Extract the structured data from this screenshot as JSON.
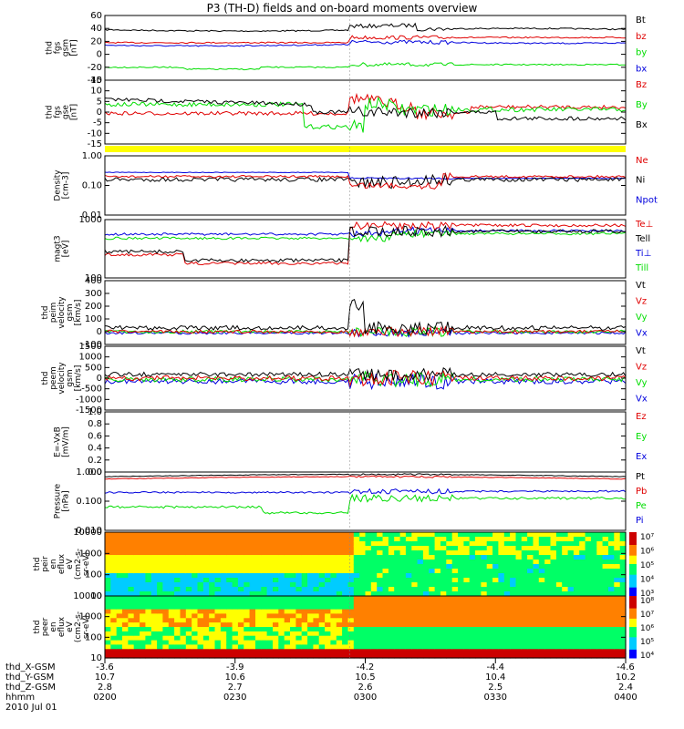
{
  "title": "P3 (TH-D) fields and on-board moments overview",
  "colors": {
    "black": "#000000",
    "red": "#e00000",
    "green": "#00dd00",
    "blue": "#0000dd",
    "yellow": "#ffff00"
  },
  "chart_data": [
    {
      "type": "line",
      "panel": "fgs_gsm",
      "ylabel_lines": [
        "thd",
        "fgs",
        "gsm",
        "[nT]"
      ],
      "ylim": [
        -40,
        60
      ],
      "ticks": [
        "60",
        "40",
        "20",
        "0",
        "-20",
        "-40"
      ],
      "series": [
        {
          "name": "Bt",
          "color": "black",
          "level": 37
        },
        {
          "name": "bz",
          "color": "red",
          "level": 18
        },
        {
          "name": "by",
          "color": "green",
          "level": -22
        },
        {
          "name": "bx",
          "color": "blue",
          "level": 14
        }
      ]
    },
    {
      "type": "line",
      "panel": "fgs_gse",
      "ylabel_lines": [
        "thd",
        "fgs",
        "gse",
        "[nT]"
      ],
      "ylim": [
        -15,
        15
      ],
      "ticks": [
        "15",
        "10",
        "5",
        "0",
        "-5",
        "-10",
        "-15"
      ],
      "series": [
        {
          "name": "Bz",
          "color": "red",
          "level": 2
        },
        {
          "name": "By",
          "color": "green",
          "level": 3
        },
        {
          "name": "Bx",
          "color": "black",
          "level": -2
        }
      ]
    },
    {
      "type": "line",
      "panel": "density",
      "ylabel_lines": [
        "Density",
        "[cm-3]"
      ],
      "scale": "log",
      "ylim": [
        0.01,
        1.0
      ],
      "ticks": [
        "1.00",
        "0.10",
        "0.01"
      ],
      "series": [
        {
          "name": "Ne",
          "color": "red",
          "level": 0.3
        },
        {
          "name": "Ni",
          "color": "black",
          "level": 0.25
        },
        {
          "name": "Npot",
          "color": "blue",
          "level": 0.35
        }
      ]
    },
    {
      "type": "line",
      "panel": "temperature",
      "ylabel_lines": [
        "magt3",
        "[eV]"
      ],
      "scale": "log",
      "ylim": [
        100,
        10000
      ],
      "ticks": [
        "1000",
        "100"
      ],
      "series": [
        {
          "name": "Te⊥",
          "color": "red"
        },
        {
          "name": "Tell",
          "color": "black"
        },
        {
          "name": "Ti⊥",
          "color": "blue"
        },
        {
          "name": "Till",
          "color": "green"
        }
      ]
    },
    {
      "type": "line",
      "panel": "peim_velocity",
      "ylabel_lines": [
        "thd",
        "peim",
        "velocity",
        "gsm",
        "[km/s]"
      ],
      "ylim": [
        -100,
        400
      ],
      "ticks": [
        "400",
        "300",
        "200",
        "100",
        "0",
        "-100"
      ],
      "series": [
        {
          "name": "Vt",
          "color": "black"
        },
        {
          "name": "Vz",
          "color": "red"
        },
        {
          "name": "Vy",
          "color": "green"
        },
        {
          "name": "Vx",
          "color": "blue"
        }
      ]
    },
    {
      "type": "line",
      "panel": "peem_velocity",
      "ylabel_lines": [
        "thd",
        "peem",
        "velocity",
        "gsm",
        "[km/s]"
      ],
      "ylim": [
        -1500,
        1500
      ],
      "ticks": [
        "1500",
        "1000",
        "500",
        "0",
        "-500",
        "-1000",
        "-1500"
      ],
      "series": [
        {
          "name": "Vt",
          "color": "black"
        },
        {
          "name": "Vz",
          "color": "red"
        },
        {
          "name": "Vy",
          "color": "green"
        },
        {
          "name": "Vx",
          "color": "blue"
        }
      ]
    },
    {
      "type": "line",
      "panel": "efield",
      "ylabel_lines": [
        "E=-VxB",
        "[mV/m]"
      ],
      "ylim": [
        0,
        1
      ],
      "ticks": [
        "1.0",
        "0.8",
        "0.6",
        "0.4",
        "0.2",
        "0.0"
      ],
      "series": [
        {
          "name": "Ez",
          "color": "red"
        },
        {
          "name": "Ey",
          "color": "green"
        },
        {
          "name": "Ex",
          "color": "blue"
        }
      ]
    },
    {
      "type": "line",
      "panel": "pressure",
      "ylabel_lines": [
        "Pressure",
        "[nPa]"
      ],
      "scale": "log",
      "ylim": [
        0.001,
        1.0
      ],
      "ticks": [
        "1.000",
        "0.100",
        "0.010"
      ],
      "series": [
        {
          "name": "Pt",
          "color": "black"
        },
        {
          "name": "Pb",
          "color": "red"
        },
        {
          "name": "Pe",
          "color": "green"
        },
        {
          "name": "Pi",
          "color": "blue"
        }
      ]
    },
    {
      "type": "heatmap",
      "panel": "peir",
      "ylabel_lines": [
        "thd",
        "peir",
        "en",
        "eflux",
        "eV",
        "(cm2-s-",
        "sr-eV)"
      ],
      "ticks": [
        "10000",
        "1000",
        "100",
        "10"
      ],
      "colorbar": [
        "10⁷",
        "10⁶",
        "10⁵",
        "10⁴",
        "10³"
      ]
    },
    {
      "type": "heatmap",
      "panel": "peer",
      "ylabel_lines": [
        "thd",
        "peer",
        "en",
        "eflux",
        "eV",
        "(cm2-s-",
        "sr-eV)"
      ],
      "ticks": [
        "10000",
        "1000",
        "100",
        "10"
      ],
      "colorbar": [
        "10⁸",
        "10⁷",
        "10⁶",
        "10⁵",
        "10⁴"
      ]
    }
  ],
  "xaxis": {
    "rows": [
      {
        "label": "thd_X-GSM",
        "values": [
          "-3.6",
          "-3.9",
          "-4.2",
          "-4.4",
          "-4.6"
        ]
      },
      {
        "label": "thd_Y-GSM",
        "values": [
          "10.7",
          "10.6",
          "10.5",
          "10.4",
          "10.2"
        ]
      },
      {
        "label": "thd_Z-GSM",
        "values": [
          "2.8",
          "2.7",
          "2.6",
          "2.5",
          "2.4"
        ]
      },
      {
        "label": "hhmm",
        "values": [
          "0200",
          "0230",
          "0300",
          "0330",
          "0400"
        ]
      }
    ],
    "date": "2010 Jul 01"
  }
}
